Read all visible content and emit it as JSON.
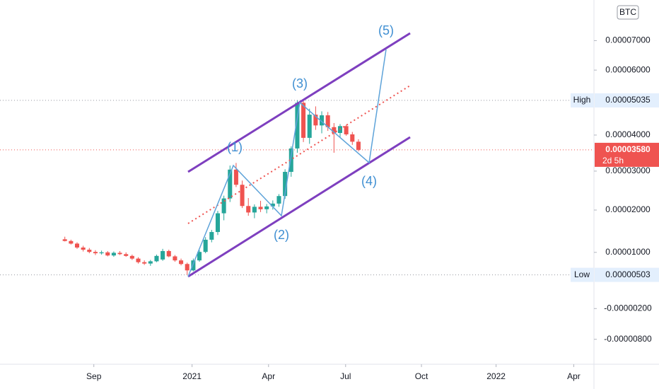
{
  "chart_data": {
    "type": "candlestick",
    "currency": "BTC",
    "up_color": "#26a69a",
    "down_color": "#ef5350",
    "log_scale": true,
    "ylim": [
      -1.26e-05,
      8.48e-05
    ],
    "xlim": [
      -10.6,
      86.5
    ],
    "yticks": [
      {
        "value": 7e-05,
        "label": "0.00007000"
      },
      {
        "value": 6e-05,
        "label": "0.00006000"
      },
      {
        "value": 4e-05,
        "label": "0.00004000"
      },
      {
        "value": 3e-05,
        "label": "0.00003000"
      },
      {
        "value": 2e-05,
        "label": "0.00002000"
      },
      {
        "value": 1e-05,
        "label": "0.00001000"
      },
      {
        "value": -2e-06,
        "label": "-0.00000200"
      },
      {
        "value": -8e-06,
        "label": "-0.00000800"
      }
    ],
    "xticks": [
      {
        "value": 4.74,
        "label": "Sep"
      },
      {
        "value": 20.8,
        "label": "2021"
      },
      {
        "value": 33.3,
        "label": "Apr"
      },
      {
        "value": 45.9,
        "label": "Jul"
      },
      {
        "value": 58.3,
        "label": "Oct"
      },
      {
        "value": 70.5,
        "label": "2022"
      },
      {
        "value": 83.2,
        "label": "Apr"
      }
    ],
    "open": [
      1.3e-05,
      1.26e-05,
      1.2e-05,
      1.11e-05,
      1.06e-05,
      1.01e-05,
      9.8e-06,
      1e-05,
      9.3e-06,
      9.9e-06,
      9.6e-06,
      9.2e-06,
      8.6e-06,
      7.8e-06,
      7.5e-06,
      8e-06,
      8.4e-06,
      1.03e-05,
      9.1e-06,
      8.2e-06,
      7.4e-06,
      6e-06,
      8.2e-06,
      1.01e-05,
      1.29e-05,
      1.47e-05,
      1.92e-05,
      2.29e-05,
      3.04e-05,
      2.64e-05,
      2.1e-05,
      1.94e-05,
      2.08e-05,
      2.02e-05,
      2.09e-05,
      2.16e-05,
      2.35e-05,
      2.98e-05,
      3.62e-05,
      4.96e-05,
      3.92e-05,
      4.6e-05,
      4.28e-05,
      4.58e-05,
      4.23e-05,
      4.06e-05,
      4.26e-05,
      4.02e-05,
      3.81e-05
    ],
    "high": [
      1.36e-05,
      1.29e-05,
      1.23e-05,
      1.15e-05,
      1.1e-05,
      1.05e-05,
      1.04e-05,
      1.03e-05,
      1.02e-05,
      1.03e-05,
      1e-05,
      9.5e-06,
      8.9e-06,
      8.2e-06,
      8.3e-06,
      9.5e-06,
      1.08e-05,
      1.06e-05,
      9.4e-06,
      8.6e-06,
      7.7e-06,
      8.6e-06,
      1.05e-05,
      1.35e-05,
      1.52e-05,
      1.98e-05,
      2.36e-05,
      3.15e-05,
      3.22e-05,
      2.75e-05,
      2.3e-05,
      2.14e-05,
      2.23e-05,
      2.15e-05,
      2.24e-05,
      2.4e-05,
      3.05e-05,
      3.68e-05,
      5.035e-05,
      5.01e-05,
      4.78e-05,
      4.85e-05,
      4.7e-05,
      4.68e-05,
      4.35e-05,
      4.32e-05,
      4.3e-05,
      4.09e-05,
      3.88e-05
    ],
    "low": [
      1.25e-05,
      1.18e-05,
      1.08e-05,
      1.02e-05,
      9.8e-06,
      9.4e-06,
      9.5e-06,
      9.1e-06,
      9e-06,
      9.4e-06,
      9e-06,
      8.3e-06,
      7.5e-06,
      7.2e-06,
      7e-06,
      7.8e-06,
      8.1e-06,
      8.9e-06,
      7.9e-06,
      7.1e-06,
      5.03e-06,
      5.8e-06,
      7.9e-06,
      9.8e-06,
      1.23e-05,
      1.4e-05,
      1.75e-05,
      2.2e-05,
      2.58e-05,
      2.05e-05,
      1.86e-05,
      1.8e-05,
      1.95e-05,
      1.92e-05,
      2.01e-05,
      2.08e-05,
      2.28e-05,
      2.85e-05,
      3.5e-05,
      3.8e-05,
      3.75e-05,
      4.15e-05,
      4.05e-05,
      4.12e-05,
      3.5e-05,
      3.94e-05,
      3.98e-05,
      3.72e-05,
      3.54e-05
    ],
    "close": [
      1.26e-05,
      1.2e-05,
      1.11e-05,
      1.06e-05,
      1.01e-05,
      9.8e-06,
      1e-05,
      9.3e-06,
      9.9e-06,
      9.6e-06,
      9.2e-06,
      8.6e-06,
      7.8e-06,
      7.5e-06,
      8e-06,
      9.2e-06,
      1.03e-05,
      9.1e-06,
      8.2e-06,
      7.4e-06,
      6e-06,
      8.2e-06,
      1.01e-05,
      1.29e-05,
      1.47e-05,
      1.92e-05,
      2.29e-05,
      3.04e-05,
      2.64e-05,
      2.1e-05,
      1.94e-05,
      2.08e-05,
      2.02e-05,
      2.09e-05,
      2.16e-05,
      2.35e-05,
      2.98e-05,
      3.62e-05,
      4.96e-05,
      3.92e-05,
      4.6e-05,
      4.28e-05,
      4.58e-05,
      4.23e-05,
      4.06e-05,
      4.26e-05,
      4.02e-05,
      3.81e-05,
      3.58e-05
    ],
    "high_marker": {
      "label": "High",
      "value": 5.035e-05,
      "value_label": "0.00005035"
    },
    "low_marker": {
      "label": "Low",
      "value": 5.03e-06,
      "value_label": "0.00000503"
    },
    "last_price": {
      "value": 3.58e-05,
      "value_label": "0.00003580",
      "countdown": "2d 5h"
    },
    "annotations": [
      "(1)",
      "(2)",
      "(3)",
      "(4)",
      "(5)"
    ]
  }
}
